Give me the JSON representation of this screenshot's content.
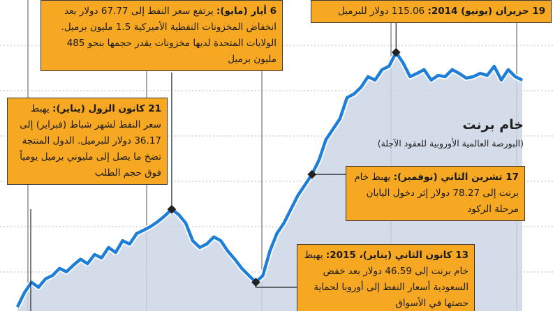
{
  "chart_data": {
    "type": "line",
    "title": "خام برنت",
    "subtitle": "(البورصة العالمية الأوروبية للعقود الآجلة)",
    "color": "#1f7fd8",
    "ylim": [
      38,
      130
    ],
    "values": [
      39.2,
      43.4,
      46.5,
      45.0,
      47.5,
      48.5,
      50.6,
      49.6,
      51.6,
      53.3,
      52.0,
      54.7,
      53.7,
      56.8,
      55.3,
      58.8,
      57.8,
      60.9,
      61.9,
      63.0,
      64.4,
      66.1,
      68.1,
      66.5,
      64.0,
      58.8,
      56.8,
      57.8,
      59.9,
      58.8,
      55.7,
      53.3,
      50.6,
      48.5,
      46.5,
      48.5,
      55.7,
      60.9,
      64.0,
      68.1,
      72.2,
      75.3,
      78.4,
      82.6,
      88.7,
      91.8,
      94.9,
      101.1,
      102.2,
      104.2,
      107.3,
      106.3,
      109.4,
      110.4,
      114.5,
      111.4,
      107.3,
      108.3,
      109.4,
      106.3,
      107.7,
      107.3,
      109.4,
      108.3,
      106.9,
      107.3,
      108.3,
      107.7,
      110.4,
      106.3,
      109.4,
      107.3,
      106.3
    ],
    "annotations": [
      {
        "heading": "6 أيار (مايو):",
        "text": "يرتفع سعر النفط إلى 67.77 دولار بعد انخفاض المخزونات النفطية الأميركية 1.5 مليون برميل. الولايات المتحدة لديها مخزونات يقدر حجمها بنحو 485 مليون برميل"
      },
      {
        "heading": "19 حزيران (يونيو) 2014:",
        "text": "115.06 دولار للبرميل"
      },
      {
        "heading": "21 كانون الزول (يناير):",
        "text": "يهبط سعر النفط لشهر شباط (فبراير) إلى 36.17 دولار للبرميل. الدول المنتجة تضخ ما يصل إلى مليوني برميل يومياً فوق حجم الطلب"
      },
      {
        "heading": "17 تشرين الثاني (نوفمبر):",
        "text": "يهبط خام برنت إلى 78.27 دولار إثر دخول اليابان مرحلة الركود"
      },
      {
        "heading": "13 كانون الثاني (يناير)، 2015:",
        "text": "يهبط خام برنت إلى 46.59 دولار بعد خفض السعودية أسعار النفط إلى أوروبا لحماية حصتها في الأسواق"
      }
    ]
  }
}
